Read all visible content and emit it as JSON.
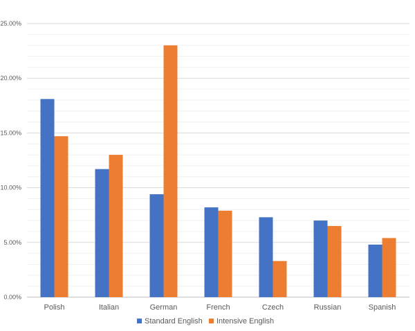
{
  "chart_data": {
    "type": "bar",
    "categories": [
      "Polish",
      "Italian",
      "German",
      "French",
      "Czech",
      "Russian",
      "Spanish"
    ],
    "series": [
      {
        "name": "Standard English",
        "color": "#4472C4",
        "values": [
          18.1,
          11.7,
          9.4,
          8.2,
          7.3,
          7.0,
          4.8
        ]
      },
      {
        "name": "Intensive English",
        "color": "#ED7D31",
        "values": [
          14.7,
          13.0,
          23.0,
          7.9,
          3.3,
          6.5,
          5.4
        ]
      }
    ],
    "y_ticks": [
      "0.00%",
      "5.00%",
      "10.00%",
      "15.00%",
      "20.00%",
      "25.00%"
    ],
    "ylim": [
      0,
      25
    ],
    "grid": true,
    "legend_position": "bottom",
    "title": "",
    "xlabel": "",
    "ylabel": ""
  }
}
